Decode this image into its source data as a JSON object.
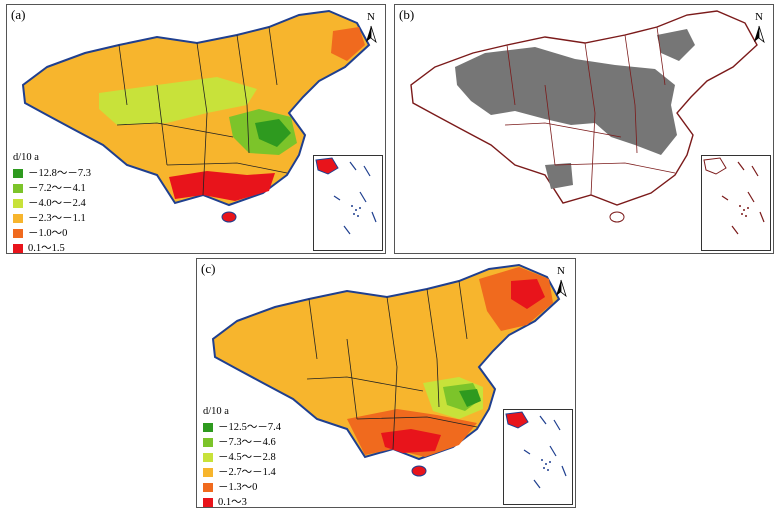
{
  "panels": {
    "a": {
      "label": "(a)",
      "north": "N",
      "legend": {
        "title": "d/10 a",
        "items": [
          {
            "label": "－12.8～－7.3",
            "color": "#2e9a1f"
          },
          {
            "label": "－7.2～－4.1",
            "color": "#7cc42a"
          },
          {
            "label": "－4.0～－2.4",
            "color": "#c8e23a"
          },
          {
            "label": "－2.3～－1.1",
            "color": "#f7b52d"
          },
          {
            "label": "－1.0～0",
            "color": "#f06a1e"
          },
          {
            "label": "0.1～1.5",
            "color": "#e8141b"
          }
        ]
      }
    },
    "b": {
      "label": "(b)",
      "north": "N",
      "colors": {
        "border": "#7b1a1a",
        "significant": "#767676"
      }
    },
    "c": {
      "label": "(c)",
      "north": "N",
      "legend": {
        "title": "d/10 a",
        "items": [
          {
            "label": "－12.5～－7.4",
            "color": "#2e9a1f"
          },
          {
            "label": "－7.3～－4.6",
            "color": "#7cc42a"
          },
          {
            "label": "－4.5～－2.8",
            "color": "#c8e23a"
          },
          {
            "label": "－2.7～－1.4",
            "color": "#f7b52d"
          },
          {
            "label": "－1.3～0",
            "color": "#f06a1e"
          },
          {
            "label": "0.1～3",
            "color": "#e8141b"
          }
        ]
      }
    }
  },
  "colors": {
    "outline": "#1f3f8f",
    "province_border": "#222222"
  }
}
